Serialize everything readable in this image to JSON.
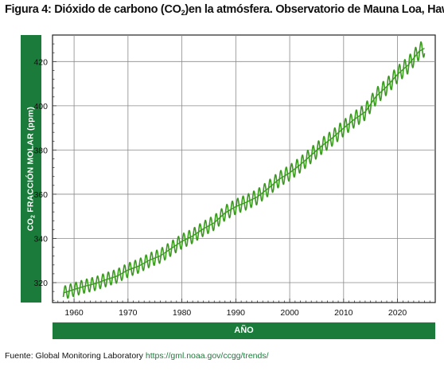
{
  "title": {
    "prefix": "Figura 4: Dióxido de carbono (CO",
    "subscript": "2",
    "suffix": ")en la atmósfera. Observatorio de Mauna Loa, Hawaii"
  },
  "footer": {
    "label": "Fuente: Global Monitoring Laboratory ",
    "link": "https://gml.noaa.gov/ccgg/trends/"
  },
  "colors": {
    "line": "#3a9a1e",
    "bar": "#1a7b3a",
    "grid": "#8a8a8a"
  },
  "chart_data": {
    "type": "line",
    "ylabel_prefix": "CO",
    "ylabel_subscript": "2",
    "ylabel_suffix": " FRACCIÓN MOLAR (ppm)",
    "xlabel": "AÑO",
    "xlim": [
      1956,
      2027
    ],
    "ylim": [
      311,
      432
    ],
    "xticks": [
      1960,
      1970,
      1980,
      1990,
      2000,
      2010,
      2020
    ],
    "yticks": [
      320,
      340,
      360,
      380,
      400,
      420
    ],
    "grid": true,
    "series": [
      {
        "x": [
          1958,
          1960,
          1962,
          1964,
          1966,
          1968,
          1970,
          1972,
          1974,
          1976,
          1978,
          1980,
          1982,
          1984,
          1986,
          1988,
          1990,
          1992,
          1994,
          1996,
          1998,
          2000,
          2002,
          2004,
          2006,
          2008,
          2010,
          2012,
          2014,
          2016,
          2018,
          2020,
          2022,
          2024,
          2025
        ],
        "y": [
          315.3,
          316.9,
          318.4,
          319.6,
          321.4,
          323.0,
          325.7,
          327.5,
          330.2,
          332.1,
          335.4,
          338.7,
          341.1,
          344.4,
          347.1,
          351.5,
          354.4,
          356.4,
          358.8,
          362.6,
          366.7,
          369.7,
          373.4,
          377.7,
          381.9,
          385.6,
          389.9,
          393.9,
          397.2,
          404.2,
          408.7,
          414.2,
          418.5,
          424.6,
          426.0
        ]
      }
    ]
  }
}
